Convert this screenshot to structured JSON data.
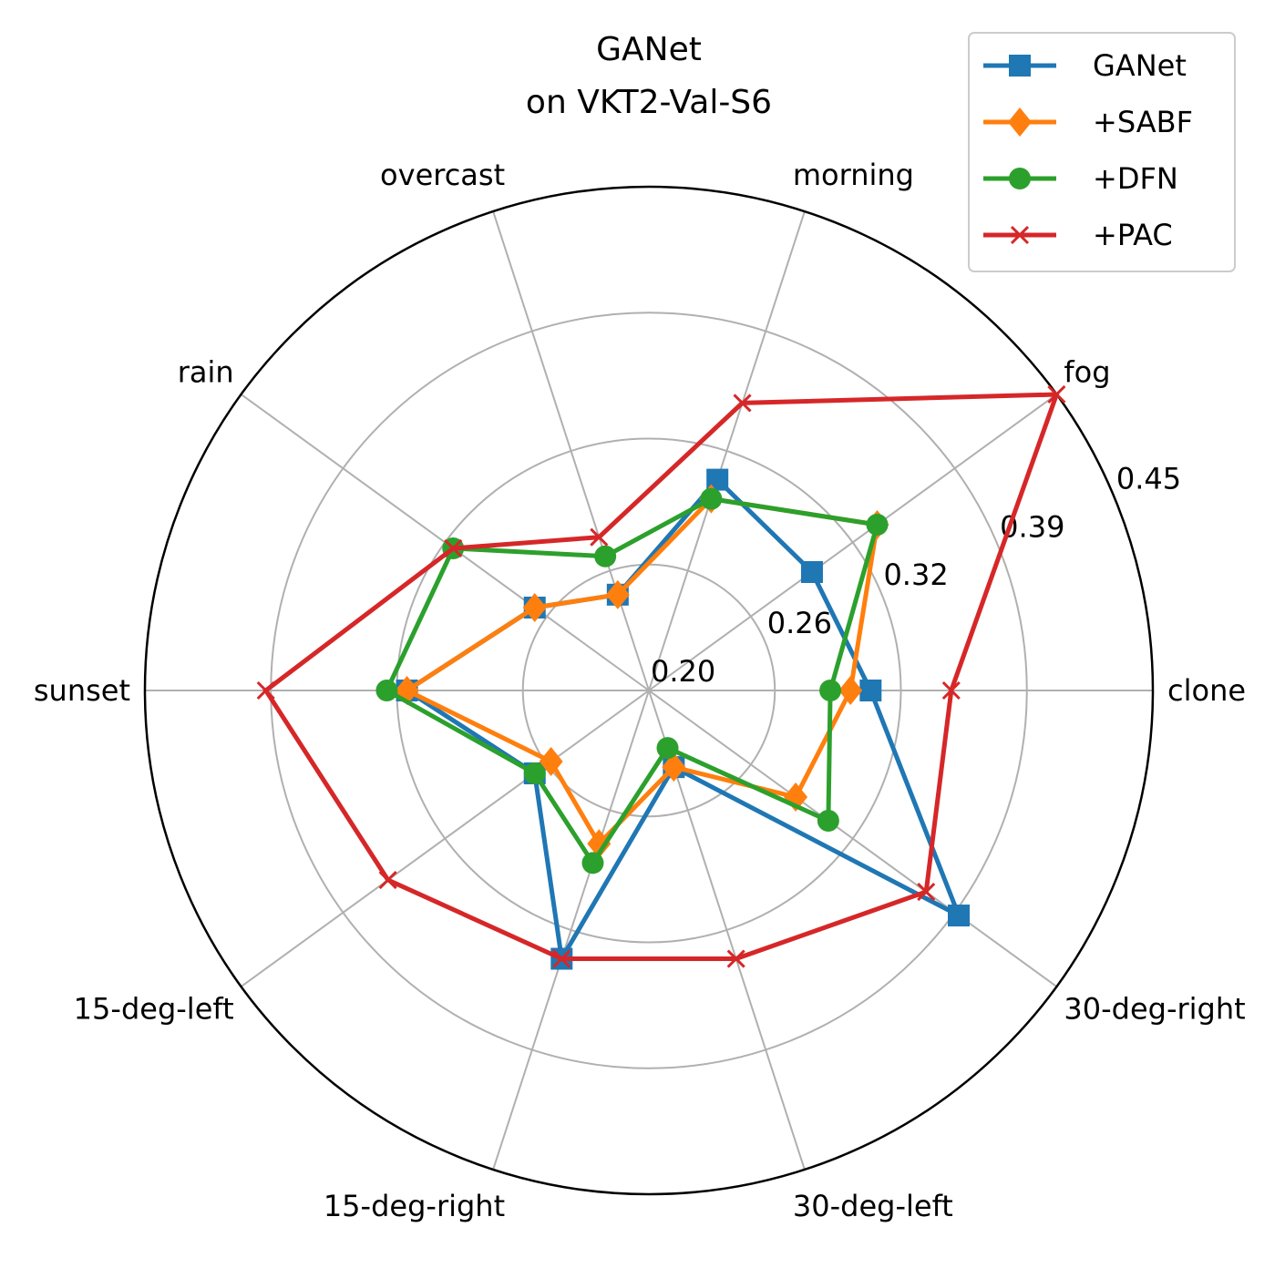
{
  "chart_data": {
    "type": "radar",
    "title": [
      "GANet",
      "on VKT2-Val-S6"
    ],
    "categories": [
      "clone",
      "fog",
      "morning",
      "overcast",
      "rain",
      "sunset",
      "15-deg-left",
      "15-deg-right",
      "30-deg-left",
      "30-deg-right"
    ],
    "radial_range": [
      0.2,
      0.45
    ],
    "radial_ticks": [
      "0.20",
      "0.26",
      "0.32",
      "0.39",
      "0.45"
    ],
    "radial_tick_values": [
      0.2,
      0.2625,
      0.325,
      0.3875,
      0.45
    ],
    "grid": true,
    "legend_position": "top-right",
    "series": [
      {
        "name": "GANet",
        "color": "#1f77b4",
        "marker": "square",
        "values": [
          0.31,
          0.3,
          0.31,
          0.25,
          0.27,
          0.32,
          0.27,
          0.34,
          0.24,
          0.39
        ]
      },
      {
        "name": "+SABF",
        "color": "#ff7f0e",
        "marker": "diamond",
        "values": [
          0.3,
          0.34,
          0.3,
          0.25,
          0.27,
          0.32,
          0.26,
          0.28,
          0.24,
          0.29
        ]
      },
      {
        "name": "+DFN",
        "color": "#2ca02c",
        "marker": "circle",
        "values": [
          0.29,
          0.34,
          0.3,
          0.27,
          0.32,
          0.33,
          0.27,
          0.29,
          0.23,
          0.31
        ]
      },
      {
        "name": "+PAC",
        "color": "#d62728",
        "marker": "x",
        "values": [
          0.35,
          0.45,
          0.35,
          0.28,
          0.32,
          0.39,
          0.36,
          0.34,
          0.34,
          0.37
        ]
      }
    ]
  }
}
